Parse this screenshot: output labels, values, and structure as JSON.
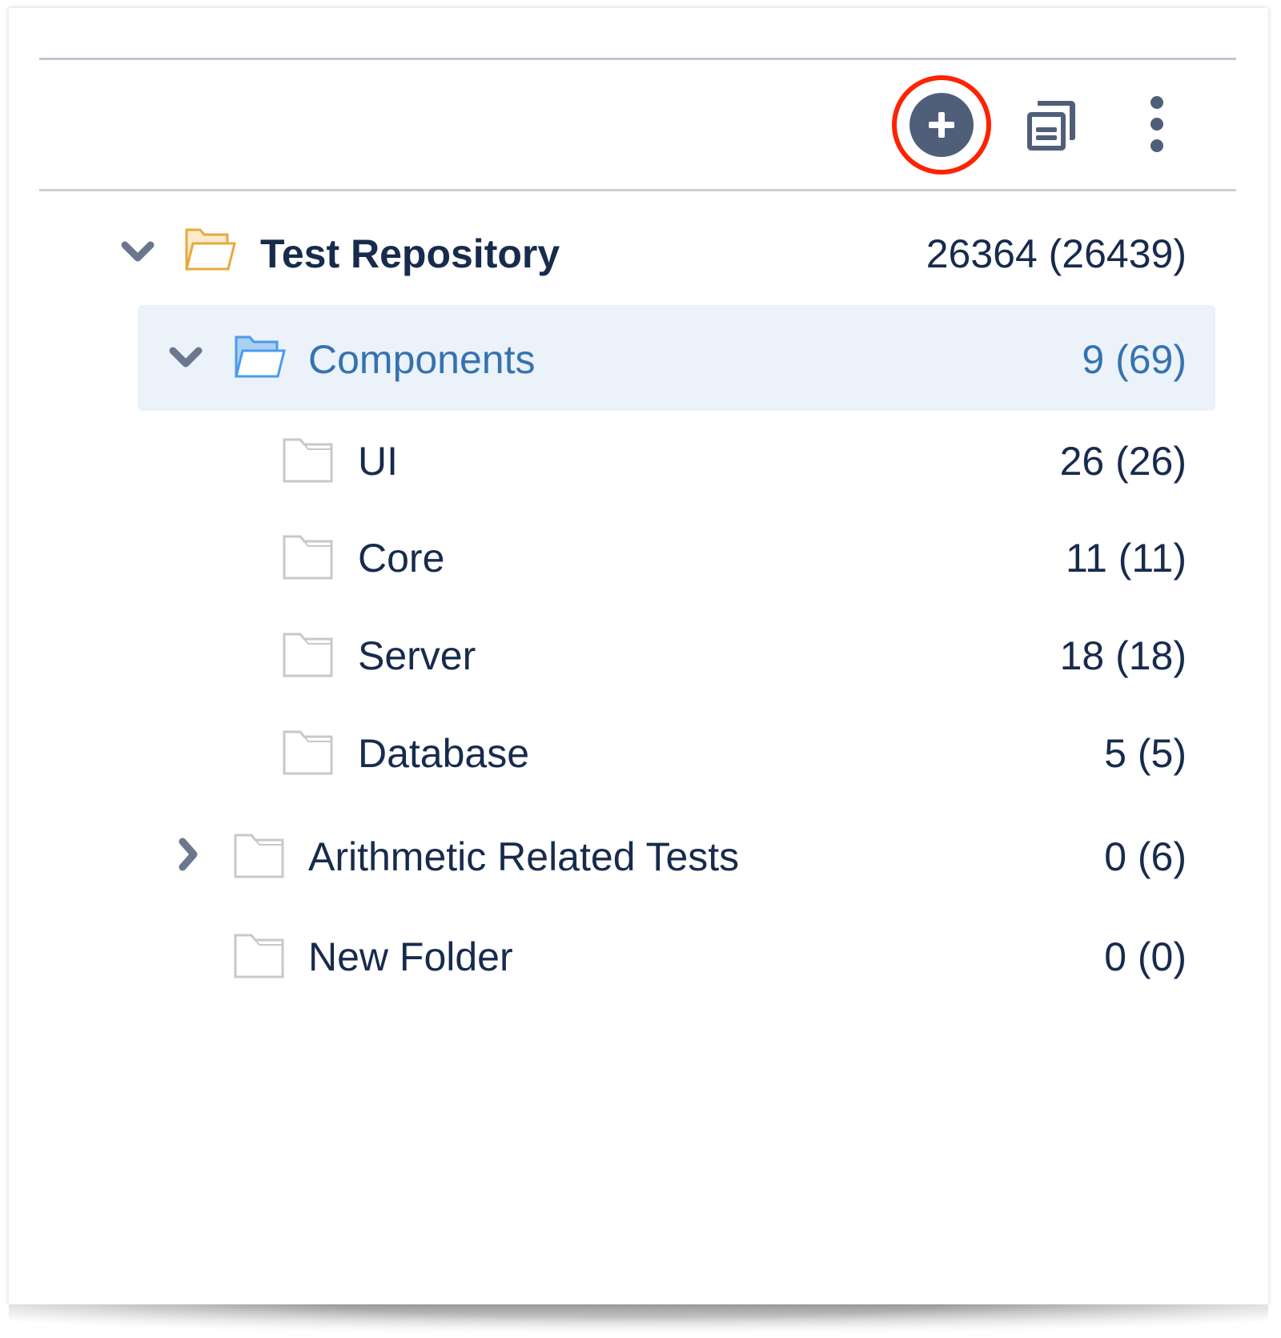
{
  "toolbar": {
    "add_icon": "plus-circle-icon",
    "copy_icon": "copy-document-icon",
    "more_icon": "more-vertical-icon",
    "highlight_color": "#ff2200"
  },
  "tree": {
    "root": {
      "label": "Test Repository",
      "count": "26364 (26439)",
      "icon": "folder-open-icon",
      "color": "#e8a93c"
    },
    "items": [
      {
        "label": "Components",
        "count": "9 (69)",
        "selected": true,
        "expanded": true
      },
      {
        "label": "UI",
        "count": "26 (26)"
      },
      {
        "label": "Core",
        "count": "11 (11)"
      },
      {
        "label": "Server",
        "count": "18 (18)"
      },
      {
        "label": "Database",
        "count": "5 (5)"
      },
      {
        "label": "Arithmetic Related Tests",
        "count": "0 (6)",
        "expanded": false
      },
      {
        "label": "New Folder",
        "count": "0 (0)"
      }
    ],
    "selected_color": "#3572b0",
    "selected_bg": "#ebf2f9"
  }
}
